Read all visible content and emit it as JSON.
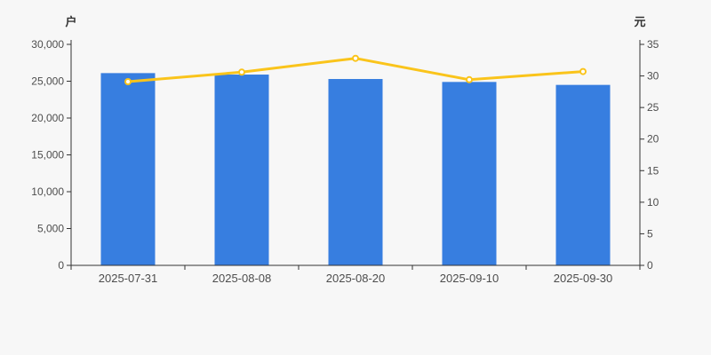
{
  "chart_data": {
    "type": "bar",
    "subtype": "combo-bar-line-dual-axis",
    "title": null,
    "legend": null,
    "grid_lines": false,
    "categories": [
      "2025-07-31",
      "2025-08-08",
      "2025-08-20",
      "2025-09-10",
      "2025-09-30"
    ],
    "series": [
      {
        "id": "bar-series",
        "type": "bar",
        "y_axis": "left",
        "values": [
          26100,
          25900,
          25300,
          24900,
          24500
        ],
        "color": "#377ee0"
      },
      {
        "id": "line-series",
        "type": "line",
        "y_axis": "right",
        "values": [
          29.1,
          30.6,
          32.8,
          29.4,
          30.7
        ],
        "color": "#fac41b",
        "marker_fill": "#ffffff"
      }
    ],
    "left_axis": {
      "name": "户",
      "min": 0,
      "max": 30000,
      "interval": 5000,
      "tick_labels": [
        "0",
        "5,000",
        "10,000",
        "15,000",
        "20,000",
        "25,000",
        "30,000"
      ]
    },
    "right_axis": {
      "name": "元",
      "min": 0,
      "max": 35,
      "interval": 5,
      "tick_labels": [
        "0",
        "5",
        "10",
        "15",
        "20",
        "25",
        "30",
        "35"
      ]
    }
  },
  "style": {
    "background": "#f7f7f7",
    "axis_line_color": "#333333",
    "tick_label_color": "#4d4d4d",
    "axis_name_color": "#333333"
  }
}
